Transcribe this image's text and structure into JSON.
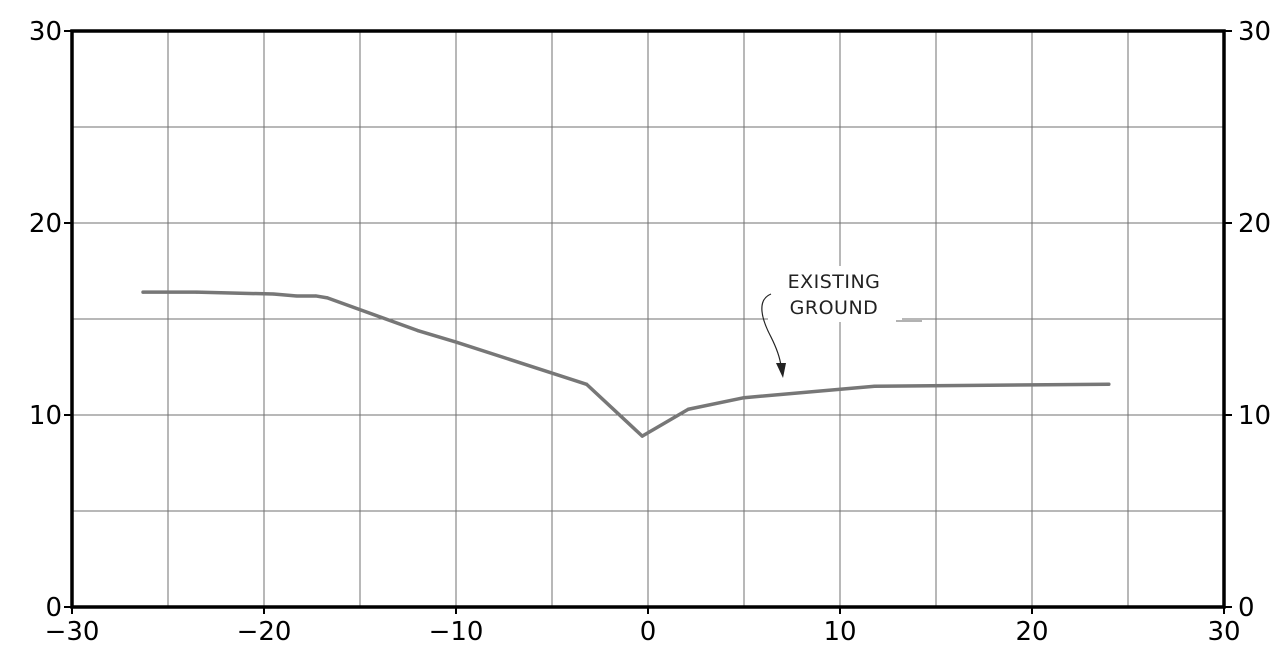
{
  "chart_data": {
    "type": "line",
    "title": "",
    "xlabel": "",
    "ylabel": "",
    "xlim": [
      -30,
      30
    ],
    "ylim": [
      0,
      30
    ],
    "x_ticks": [
      -30,
      -20,
      -10,
      0,
      10,
      20,
      30
    ],
    "y_ticks": [
      0,
      10,
      20,
      30
    ],
    "x_tick_labels": [
      "−30",
      "−20",
      "−10",
      "0",
      "10",
      "20",
      "30"
    ],
    "y_tick_labels_left": [
      "0",
      "10",
      "20",
      "30"
    ],
    "y_tick_labels_right": [
      "0",
      "10",
      "20",
      "30"
    ],
    "x_grid_step": 5,
    "y_grid_step": 5,
    "grid": true,
    "line_color": "#777777",
    "series": [
      {
        "x": [
          -26.3,
          -23.5,
          -19.5,
          -18.3,
          -17.3,
          -16.7,
          -12.0,
          -10.0,
          -3.2,
          -0.3,
          2.1,
          5.0,
          11.8,
          24.0
        ],
        "y": [
          16.4,
          16.4,
          16.3,
          16.2,
          16.2,
          16.1,
          14.4,
          13.8,
          11.6,
          8.9,
          10.3,
          10.9,
          11.5,
          11.6
        ]
      }
    ],
    "annotations": [
      {
        "text_lines": [
          "EXISTING",
          "GROUND"
        ],
        "points_to": [
          7.0,
          11.1
        ]
      }
    ]
  }
}
